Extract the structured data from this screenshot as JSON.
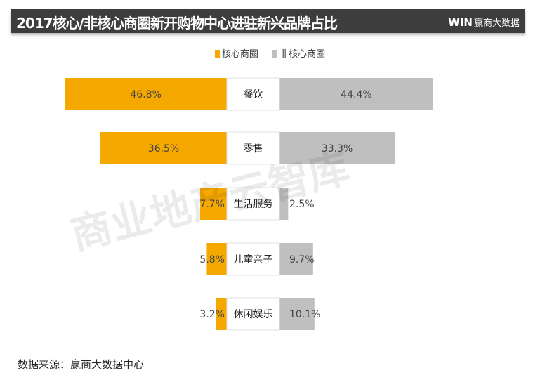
{
  "header": {
    "title": "2017核心/非核心商圈新开购物中心进驻新兴品牌占比",
    "brand_logo": "WIN",
    "brand_name": "赢商大数据"
  },
  "watermark": "商业地产云智库",
  "footer": {
    "source": "数据来源：赢商大数据中心"
  },
  "colors": {
    "core": "#f5a800",
    "noncore": "#bfbfbf"
  },
  "chart_data": {
    "type": "bar",
    "orientation": "horizontal-diverging",
    "categories": [
      "餐饮",
      "零售",
      "生活服务",
      "儿童亲子",
      "休闲娱乐"
    ],
    "series": [
      {
        "name": "核心商圈",
        "values": [
          46.8,
          36.5,
          7.7,
          5.8,
          3.2
        ],
        "labels": [
          "46.8%",
          "36.5%",
          "7.7%",
          "5.8%",
          "3.2%"
        ]
      },
      {
        "name": "非核心商圈",
        "values": [
          44.4,
          33.3,
          2.5,
          9.7,
          10.1
        ],
        "labels": [
          "44.4%",
          "33.3%",
          "2.5%",
          "9.7%",
          "10.1%"
        ]
      }
    ],
    "legend": "top-center",
    "grid": false
  }
}
